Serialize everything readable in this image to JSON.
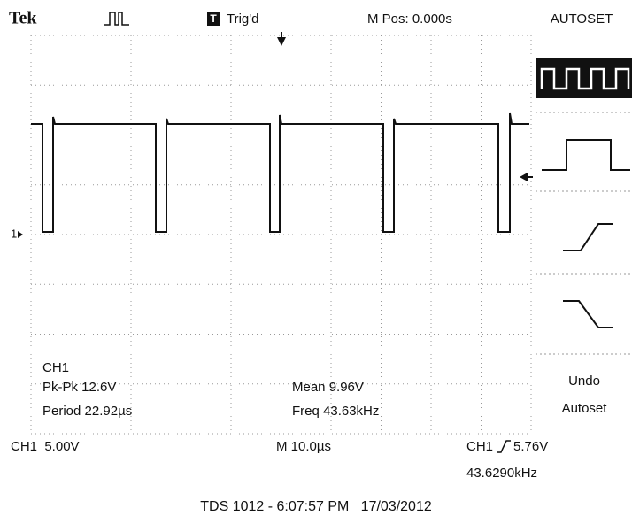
{
  "header": {
    "logo": "Tek",
    "trigger_icon": "T",
    "trigger_status": "Trig'd",
    "position": "M Pos: 0.000s"
  },
  "menu": {
    "title": "AUTOSET",
    "undo": [
      "Undo",
      "Autoset"
    ]
  },
  "screen": {
    "channel_marker": "1"
  },
  "measurements": {
    "channel": "CH1",
    "pk_pk": "Pk-Pk 12.6V",
    "period": "Period 22.92µs",
    "mean": "Mean 9.96V",
    "freq": "Freq 43.63kHz"
  },
  "status": {
    "channel_scale": "CH1  5.00V",
    "timebase": "M 10.0µs",
    "trigger_source": "CH1",
    "trigger_level": "5.76V",
    "trigger_freq": "43.6290kHz"
  },
  "footer": "TDS 1012 - 6:07:57 PM   17/03/2012"
}
